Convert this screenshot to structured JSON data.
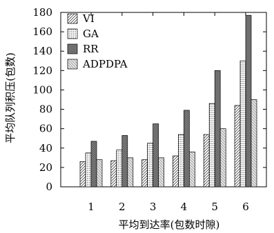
{
  "chart_data": {
    "type": "bar",
    "categories": [
      "1",
      "2",
      "3",
      "4",
      "5",
      "6"
    ],
    "series": [
      {
        "name": "VI",
        "values": [
          26,
          27,
          28,
          32,
          54,
          84
        ],
        "pattern": "diag-right"
      },
      {
        "name": "GA",
        "values": [
          35,
          38,
          45,
          54,
          86,
          130
        ],
        "pattern": "dots"
      },
      {
        "name": "RR",
        "values": [
          47,
          53,
          65,
          79,
          120,
          177
        ],
        "pattern": "crosshatch"
      },
      {
        "name": "ADPDPA",
        "values": [
          28,
          30,
          30,
          36,
          60,
          90
        ],
        "pattern": "diag-left"
      }
    ],
    "title": "",
    "xlabel": "平均到达率(包数时隙)",
    "ylabel": "平均队列积压(包数)",
    "ylim": [
      0,
      180
    ],
    "yticks": [
      0,
      20,
      40,
      60,
      80,
      100,
      120,
      140,
      160,
      180
    ],
    "grid": false,
    "legend_position": "top-left"
  }
}
